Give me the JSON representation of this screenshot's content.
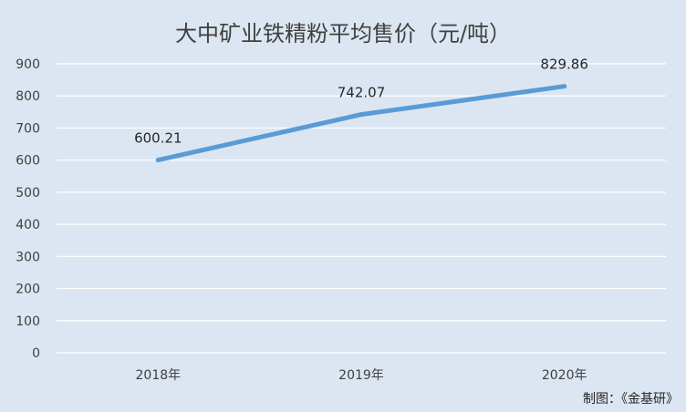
{
  "chart_data": {
    "type": "line",
    "title": "大中矿业铁精粉平均售价（元/吨）",
    "categories": [
      "2018年",
      "2019年",
      "2020年"
    ],
    "series": [
      {
        "values": [
          600.21,
          742.07,
          829.86
        ],
        "labels": [
          "600.21",
          "742.07",
          "829.86"
        ]
      }
    ],
    "ylim": [
      0,
      900
    ],
    "yticks": [
      0,
      100,
      200,
      300,
      400,
      500,
      600,
      700,
      800,
      900
    ],
    "grid": true,
    "xlabel": "",
    "ylabel": ""
  },
  "credit": "制图：《金基研》",
  "colors": {
    "background": "#dce6f2",
    "line": "#5b9bd5",
    "grid": "#ffffff",
    "text": "#404040"
  }
}
